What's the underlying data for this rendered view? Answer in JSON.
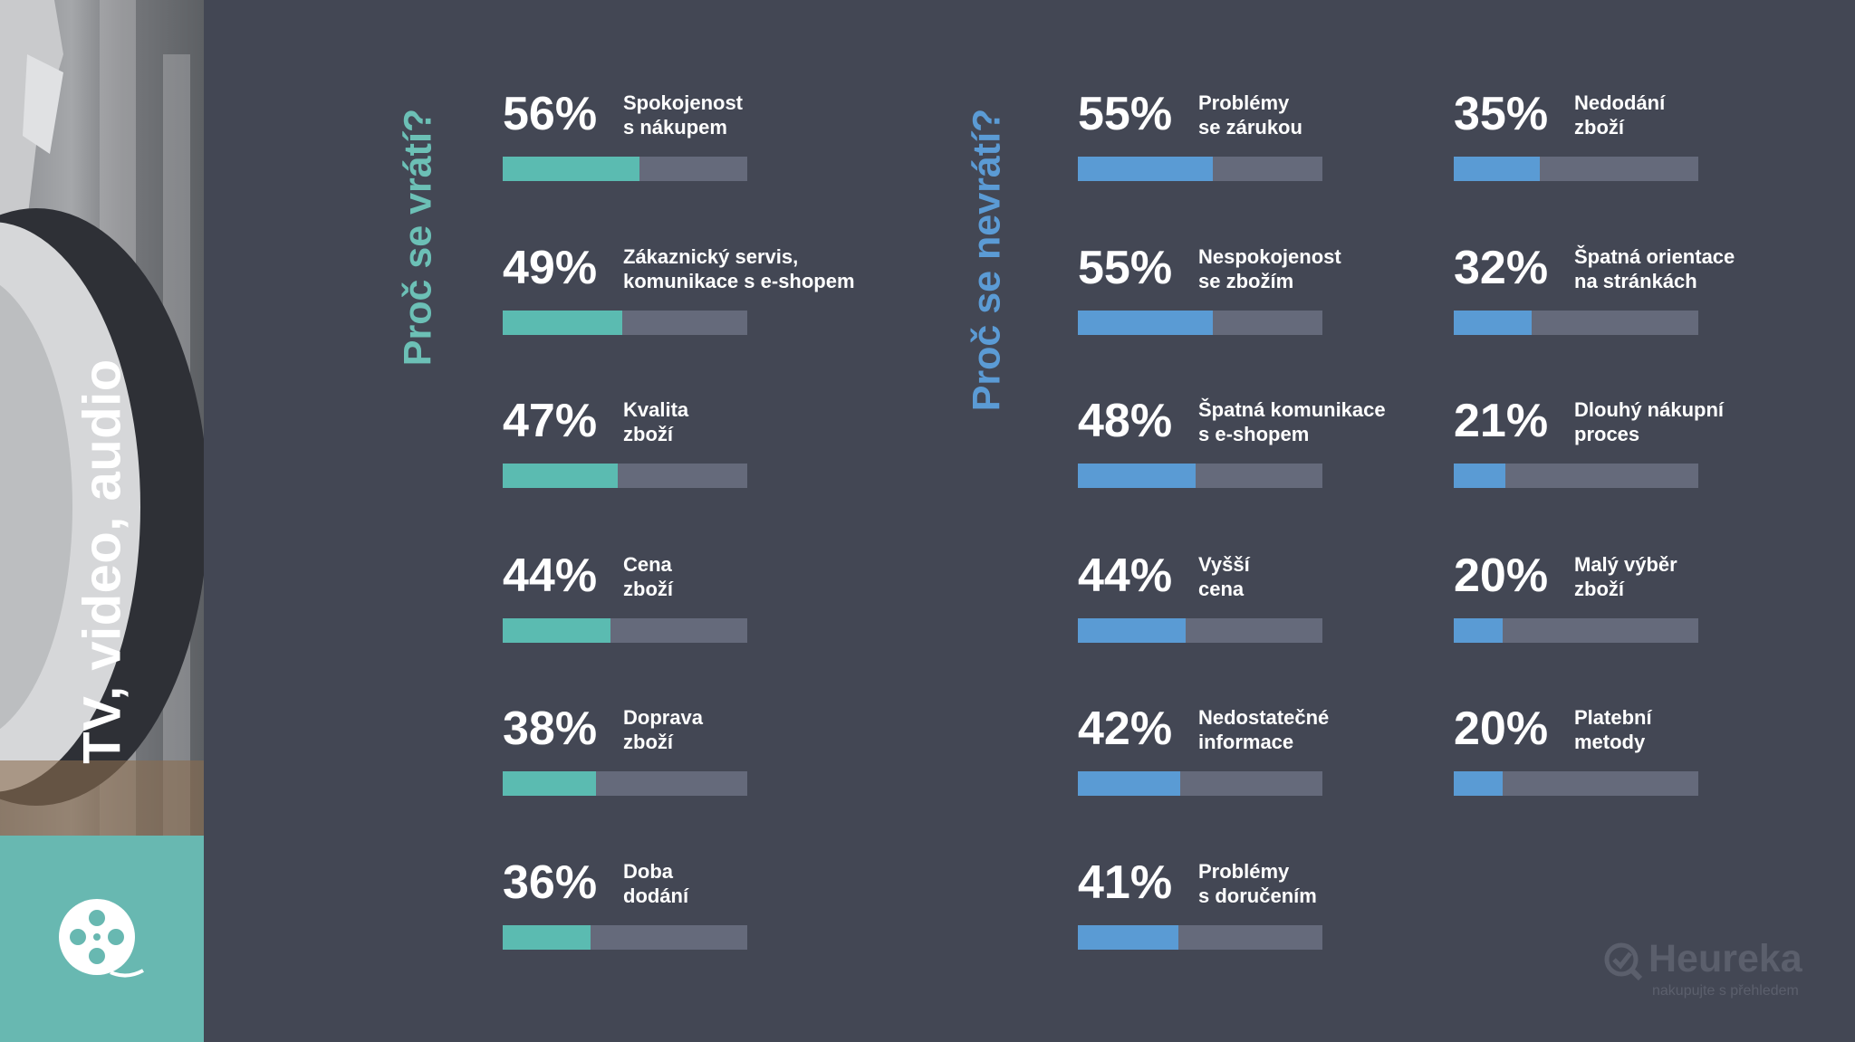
{
  "sidebar": {
    "title": "TV, video, audio",
    "icon": "film-reel-icon"
  },
  "sections": {
    "return_heading": "Proč se vrátí?",
    "noreturn_heading": "Proč se nevrátí?"
  },
  "logo": {
    "name": "Heureka",
    "tagline": "nakupujte s přehledem"
  },
  "colors": {
    "background": "#434754",
    "teal": "#5bbbb1",
    "blue": "#5a9bd4",
    "track": "#656a7b",
    "sidebar_tile": "#68b8b1"
  },
  "chart_data": [
    {
      "type": "bar",
      "title": "Proč se vrátí?",
      "categories": [
        "Spokojenost\ns nákupem",
        "Zákaznický servis,\nkomunikace s e-shopem",
        "Kvalita\nzboží",
        "Cena\nzboží",
        "Doprava\nzboží",
        "Doba\ndodání"
      ],
      "values": [
        56,
        49,
        47,
        44,
        38,
        36
      ],
      "value_labels": [
        "56%",
        "49%",
        "47%",
        "44%",
        "38%",
        "36%"
      ],
      "ylim": [
        0,
        100
      ],
      "color": "#5bbbb1"
    },
    {
      "type": "bar",
      "title": "Proč se nevrátí?",
      "categories": [
        "Problémy\nse zárukou",
        "Nespokojenost\nse zbožím",
        "Špatná komunikace\ns e-shopem",
        "Vyšší\ncena",
        "Nedostatečné\ninformace",
        "Problémy\ns doručením",
        "Nedodání\nzboží",
        "Špatná orientace\nna stránkách",
        "Dlouhý nákupní\nproces",
        "Malý výběr\nzboží",
        "Platební\nmetody"
      ],
      "values": [
        55,
        55,
        48,
        44,
        42,
        41,
        35,
        32,
        21,
        20,
        20
      ],
      "value_labels": [
        "55%",
        "55%",
        "48%",
        "44%",
        "42%",
        "41%",
        "35%",
        "32%",
        "21%",
        "20%",
        "20%"
      ],
      "ylim": [
        0,
        100
      ],
      "color": "#5a9bd4"
    }
  ]
}
